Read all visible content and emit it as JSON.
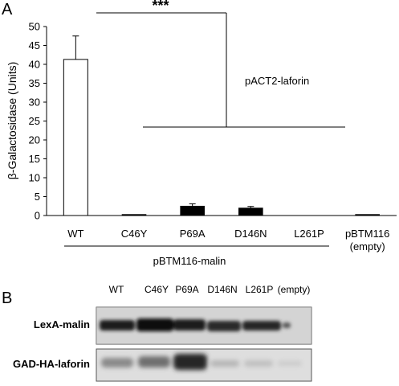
{
  "panel_a": {
    "letter": "A"
  },
  "panel_b": {
    "letter": "B",
    "lanes": [
      "WT",
      "C46Y",
      "P69A",
      "D146N",
      "L261P",
      "(empty)"
    ],
    "rows": [
      "LexA-malin",
      "GAD-HA-laforin"
    ]
  },
  "chart_data": {
    "type": "bar",
    "title": "",
    "ylabel": "β-Galactosidase (Units)",
    "xlabel": "",
    "ylim": [
      0,
      50
    ],
    "yticks": [
      0,
      5,
      10,
      15,
      20,
      25,
      30,
      35,
      40,
      45,
      50
    ],
    "categories": [
      {
        "lines": [
          "WT"
        ]
      },
      {
        "lines": [
          "C46Y"
        ]
      },
      {
        "lines": [
          "P69A"
        ]
      },
      {
        "lines": [
          "D146N"
        ]
      },
      {
        "lines": [
          "L261P"
        ]
      },
      {
        "lines": [
          "pBTM116",
          "(empty)"
        ]
      }
    ],
    "values": [
      41.3,
      0.3,
      2.5,
      2.0,
      0.0,
      0.3
    ],
    "errors": [
      6.2,
      0.0,
      0.6,
      0.4,
      0.0,
      0.0
    ],
    "bar_colors": [
      "#ffffff",
      "#000000",
      "#000000",
      "#000000",
      "#000000",
      "#000000"
    ],
    "grid": false,
    "annotations": {
      "significance": "***",
      "bracket_label": "pACT2-laforin",
      "group_label": "pBTM116-malin"
    }
  }
}
